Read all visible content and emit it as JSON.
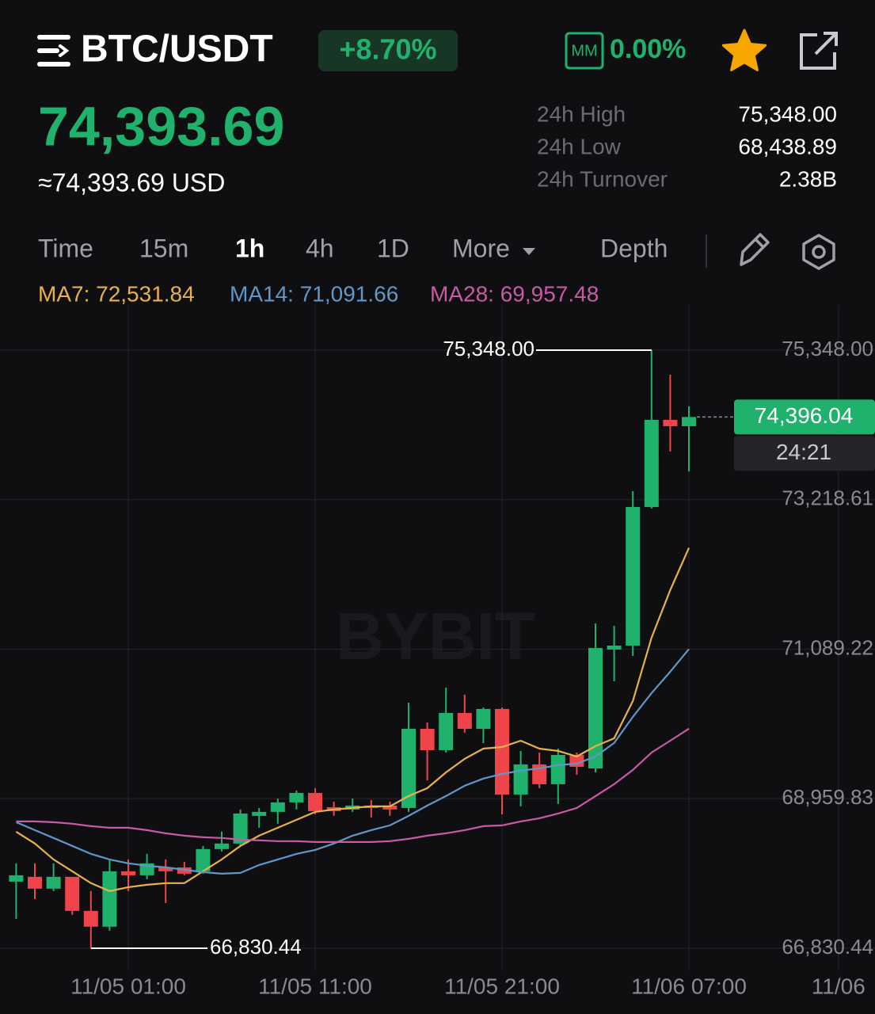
{
  "header": {
    "pair": "BTC/USDT",
    "change": "+8.70%",
    "mm_icon": "MM",
    "mm_value": "0.00%"
  },
  "price": {
    "last": "74,393.69",
    "usd": "≈74,393.69 USD"
  },
  "stats": [
    {
      "label": "24h High",
      "value": "75,348.00"
    },
    {
      "label": "24h Low",
      "value": "68,438.89"
    },
    {
      "label": "24h Turnover",
      "value": "2.38B"
    }
  ],
  "tabs": [
    "Time",
    "15m",
    "1h",
    "4h",
    "1D",
    "More",
    "Depth"
  ],
  "chart_data": {
    "type": "candlestick",
    "watermark": "BYBIT",
    "categories": [
      null,
      null,
      null,
      null,
      null,
      null,
      "11/05 01:00",
      null,
      null,
      null,
      null,
      null,
      null,
      null,
      null,
      null,
      "11/05 11:00",
      null,
      null,
      null,
      null,
      null,
      null,
      null,
      null,
      null,
      "11/05 21:00",
      null,
      null,
      null,
      null,
      null,
      null,
      null,
      null,
      null,
      "11/06 07:00",
      null,
      null,
      null,
      null,
      null,
      null,
      null,
      "11/06"
    ],
    "open": [
      67779,
      67847,
      67678,
      67847,
      67362,
      67137,
      67926,
      67869,
      67982,
      67982,
      67926,
      68242,
      68321,
      68715,
      68772,
      68907,
      69042,
      68839,
      68806,
      68862,
      68862,
      68828,
      69955,
      69651,
      70181,
      69955,
      70238,
      69019,
      69448,
      69166,
      69583,
      69391,
      71084,
      71140,
      73114,
      74355,
      74265,
      null,
      null,
      null,
      null,
      null,
      null,
      null,
      null
    ],
    "high": [
      68039,
      68039,
      68039,
      67847,
      67644,
      68095,
      68095,
      68174,
      68095,
      68061,
      68287,
      68490,
      68806,
      68828,
      68963,
      69076,
      69110,
      68918,
      68963,
      68941,
      68918,
      70328,
      70046,
      70542,
      70441,
      70260,
      70260,
      69640,
      69617,
      69673,
      69617,
      71456,
      71422,
      73340,
      75348.0,
      74998,
      74547,
      null,
      null,
      null,
      null,
      null,
      null,
      null,
      null
    ],
    "low": [
      67249,
      67531,
      67644,
      67306,
      66830.44,
      67080,
      67644,
      67813,
      67475,
      67869,
      67892,
      68208,
      68287,
      68546,
      68603,
      68806,
      68738,
      68715,
      68772,
      68693,
      68715,
      68772,
      69222,
      69617,
      69899,
      69752,
      68738,
      68851,
      69110,
      68884,
      69301,
      69335,
      70632,
      70993,
      73092,
      73904,
      73622,
      null,
      null,
      null,
      null,
      null,
      null,
      null,
      null
    ],
    "close": [
      67869,
      67678,
      67847,
      67362,
      67137,
      67926,
      67869,
      68039,
      67926,
      67892,
      68242,
      68321,
      68749,
      68772,
      68907,
      69042,
      68783,
      68783,
      68862,
      68828,
      68806,
      69955,
      69651,
      70181,
      69955,
      70238,
      69019,
      69448,
      69166,
      69583,
      69414,
      71106,
      71140,
      73114,
      74355,
      74265,
      74396.04,
      null,
      null,
      null,
      null,
      null,
      null,
      null,
      null
    ],
    "up_color": "#20b26c",
    "down_color": "#ef454a",
    "series": [
      {
        "name": "MA7: 72,531.84",
        "color": "#e8b24a",
        "values": [
          68490,
          68321,
          68095,
          67926,
          67757,
          67644,
          67700,
          67734,
          67757,
          67757,
          67926,
          68095,
          68287,
          68433,
          68546,
          68659,
          68772,
          68806,
          68828,
          68851,
          68851,
          68997,
          69110,
          69335,
          69527,
          69673,
          69696,
          69786,
          69673,
          69640,
          69561,
          69708,
          69820,
          70351,
          71253,
          71930,
          72531.84,
          null,
          null,
          null,
          null,
          null,
          null,
          null,
          null
        ]
      },
      {
        "name": "MA14: 71,091.66",
        "color": "#5f97c8",
        "values": [
          68625,
          68512,
          68400,
          68287,
          68174,
          68095,
          68039,
          68005,
          67982,
          67948,
          67914,
          67892,
          67903,
          68016,
          68095,
          68174,
          68230,
          68321,
          68433,
          68512,
          68580,
          68715,
          68862,
          68997,
          69144,
          69246,
          69313,
          69358,
          69392,
          69437,
          69460,
          69561,
          69753,
          70125,
          70464,
          70768,
          71091.66,
          null,
          null,
          null,
          null,
          null,
          null,
          null,
          null
        ]
      },
      {
        "name": "MA28: 69,957.48",
        "color": "#c85aa6",
        "values": [
          68636,
          68636,
          68625,
          68603,
          68569,
          68546,
          68546,
          68512,
          68467,
          68433,
          68411,
          68400,
          68377,
          68366,
          68355,
          68355,
          68343,
          68343,
          68343,
          68343,
          68355,
          68388,
          68433,
          68467,
          68512,
          68569,
          68580,
          68636,
          68681,
          68749,
          68828,
          68997,
          69166,
          69369,
          69617,
          69786,
          69957.48,
          null,
          null,
          null,
          null,
          null,
          null,
          null,
          null
        ]
      }
    ],
    "ylim": [
      66514,
      75991
    ],
    "yticks": [
      {
        "value": 66830.44,
        "label": "66,830.44"
      },
      {
        "value": 68959.83,
        "label": "68,959.83"
      },
      {
        "value": 71089.22,
        "label": "71,089.22"
      },
      {
        "value": 73218.61,
        "label": "73,218.61"
      },
      {
        "value": 75348.0,
        "label": "75,348.00"
      }
    ],
    "grid": true,
    "high_marker": {
      "value": 75348.0,
      "label": "75,348.00"
    },
    "low_marker": {
      "value": 66830.44,
      "label": "66,830.44"
    },
    "last_price": {
      "value": 74396.04,
      "label": "74,396.04",
      "countdown": "24:21"
    }
  }
}
